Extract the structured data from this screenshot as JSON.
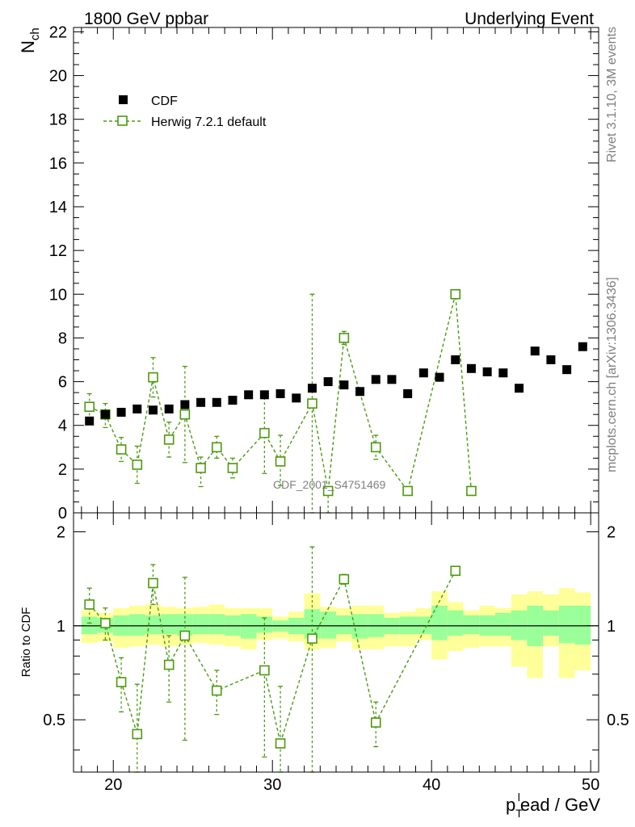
{
  "header": {
    "left_title": "1800 GeV ppbar",
    "right_title": "Underlying Event"
  },
  "side_labels": {
    "rivet": "Rivet 3.1.10,  3M events",
    "mcplots": "mcplots.cern.ch [arXiv:1306.3436]"
  },
  "watermark": "CDF_2001_S4751469",
  "chart_data": [
    {
      "type": "scatter",
      "name": "main",
      "ylabel_main": "N",
      "ylabel_sub": "ch",
      "xlabel_p": "p",
      "xlabel_T": "T",
      "xlabel_sup": "l",
      "xlabel_rest": "ead / GeV",
      "xlim": [
        17.5,
        50.5
      ],
      "ylim": [
        0,
        22.2
      ],
      "x_ticks": [
        "20",
        "30",
        "40",
        "50"
      ],
      "y_ticks": [
        "0",
        "2",
        "4",
        "6",
        "8",
        "10",
        "12",
        "14",
        "16",
        "18",
        "20",
        "22"
      ],
      "legend": {
        "position": "top-left",
        "entries": [
          "CDF",
          "Herwig 7.2.1 default"
        ]
      },
      "series": [
        {
          "name": "CDF",
          "color": "#000000",
          "marker": "filled-square",
          "x": [
            18.5,
            19.5,
            20.5,
            21.5,
            22.5,
            23.5,
            24.5,
            25.5,
            26.5,
            27.5,
            28.5,
            29.5,
            30.5,
            31.5,
            32.5,
            33.5,
            34.5,
            35.5,
            36.5,
            37.5,
            38.5,
            39.5,
            40.5,
            41.5,
            42.5,
            43.5,
            44.5,
            45.5,
            46.5,
            47.5,
            48.5,
            49.5
          ],
          "y": [
            4.2,
            4.5,
            4.6,
            4.75,
            4.7,
            4.75,
            4.95,
            5.05,
            5.05,
            5.15,
            5.4,
            5.4,
            5.45,
            5.25,
            5.7,
            6.0,
            5.85,
            5.55,
            6.1,
            6.1,
            5.45,
            6.4,
            6.2,
            7.0,
            6.6,
            6.45,
            6.4,
            5.7,
            7.4,
            7.0,
            6.55,
            7.6
          ]
        },
        {
          "name": "Herwig 7.2.1 default",
          "color": "#4a9a0f",
          "marker": "open-square",
          "x": [
            18.5,
            19.5,
            20.5,
            21.5,
            22.5,
            23.5,
            24.5,
            25.5,
            26.5,
            27.5,
            29.5,
            30.5,
            32.5,
            33.5,
            34.5,
            36.5,
            38.5,
            41.5,
            42.5
          ],
          "y": [
            4.85,
            4.5,
            2.9,
            2.2,
            6.2,
            3.35,
            4.5,
            2.05,
            3.0,
            2.05,
            3.65,
            2.35,
            5.0,
            1.0,
            8.0,
            3.0,
            1.0,
            10.0,
            1.0
          ],
          "err_low": [
            0.6,
            0.6,
            0.55,
            0.85,
            0.9,
            0.8,
            2.2,
            0.85,
            0.5,
            0.45,
            1.85,
            1.1,
            5.4,
            1.0,
            0.3,
            0.55,
            0.0,
            0.0,
            0.0
          ],
          "err_high": [
            0.6,
            0.5,
            0.55,
            0.85,
            0.9,
            0.8,
            2.2,
            0.5,
            0.5,
            0.45,
            1.85,
            1.2,
            5.0,
            0.0,
            0.3,
            0.55,
            0.0,
            0.0,
            0.0
          ]
        }
      ]
    },
    {
      "type": "scatter",
      "name": "ratio",
      "ylabel": "Ratio to CDF",
      "xlim": [
        17.5,
        50.5
      ],
      "ylim": [
        0.34,
        2.3
      ],
      "y_ticks": [
        "0.5",
        "1",
        "2"
      ],
      "reference_line": 1.0,
      "bands": {
        "bin_edges": [
          18,
          19,
          20,
          21,
          22,
          23,
          24,
          25,
          26,
          27,
          28,
          29,
          30,
          31,
          32,
          33,
          34,
          35,
          36,
          37,
          38,
          39,
          40,
          41,
          42,
          43,
          44,
          45,
          46,
          47,
          48,
          49,
          50
        ],
        "outer_color": "#ffff99",
        "inner_color": "#99ff99",
        "outer_lo": [
          0.88,
          0.89,
          0.85,
          0.86,
          0.87,
          0.86,
          0.87,
          0.88,
          0.87,
          0.86,
          0.84,
          0.9,
          0.91,
          0.89,
          0.84,
          0.85,
          0.89,
          0.84,
          0.84,
          0.86,
          0.86,
          0.9,
          0.78,
          0.83,
          0.85,
          0.86,
          0.86,
          0.74,
          0.68,
          0.86,
          0.68,
          0.72
        ],
        "outer_hi": [
          1.12,
          1.1,
          1.14,
          1.16,
          1.17,
          1.15,
          1.14,
          1.15,
          1.17,
          1.14,
          1.14,
          1.14,
          1.07,
          1.11,
          1.27,
          1.15,
          1.14,
          1.16,
          1.16,
          1.1,
          1.11,
          1.14,
          1.29,
          1.19,
          1.12,
          1.16,
          1.14,
          1.26,
          1.29,
          1.26,
          1.32,
          1.28
        ],
        "inner_lo": [
          0.94,
          0.95,
          0.93,
          0.93,
          0.94,
          0.94,
          0.93,
          0.94,
          0.94,
          0.93,
          0.91,
          0.95,
          0.96,
          0.94,
          0.91,
          0.91,
          0.94,
          0.91,
          0.92,
          0.94,
          0.94,
          0.94,
          0.9,
          0.93,
          0.94,
          0.93,
          0.93,
          0.9,
          0.86,
          0.93,
          0.88,
          0.87
        ],
        "inner_hi": [
          1.07,
          1.06,
          1.08,
          1.09,
          1.08,
          1.09,
          1.09,
          1.09,
          1.09,
          1.08,
          1.09,
          1.07,
          1.04,
          1.06,
          1.13,
          1.11,
          1.08,
          1.09,
          1.09,
          1.06,
          1.07,
          1.07,
          1.16,
          1.12,
          1.08,
          1.08,
          1.1,
          1.12,
          1.16,
          1.12,
          1.16,
          1.16
        ]
      },
      "series": [
        {
          "name": "Herwig 7.2.1 default / CDF",
          "color": "#4a9a0f",
          "marker": "open-square",
          "x": [
            18.5,
            19.5,
            20.5,
            21.5,
            22.5,
            23.5,
            24.5,
            26.5,
            29.5,
            30.5,
            32.5,
            34.5,
            36.5,
            41.5
          ],
          "y": [
            1.17,
            1.02,
            0.66,
            0.45,
            1.37,
            0.75,
            0.93,
            0.62,
            0.72,
            0.42,
            0.91,
            1.41,
            0.49,
            1.5
          ],
          "err_low": [
            0.15,
            0.12,
            0.13,
            0.2,
            0.2,
            0.18,
            0.5,
            0.1,
            0.34,
            0.2,
            0.95,
            0.05,
            0.08,
            0.05
          ],
          "err_high": [
            0.15,
            0.12,
            0.13,
            0.2,
            0.2,
            0.18,
            0.5,
            0.1,
            0.34,
            0.22,
            0.88,
            0.05,
            0.08,
            0.05
          ]
        }
      ]
    }
  ]
}
